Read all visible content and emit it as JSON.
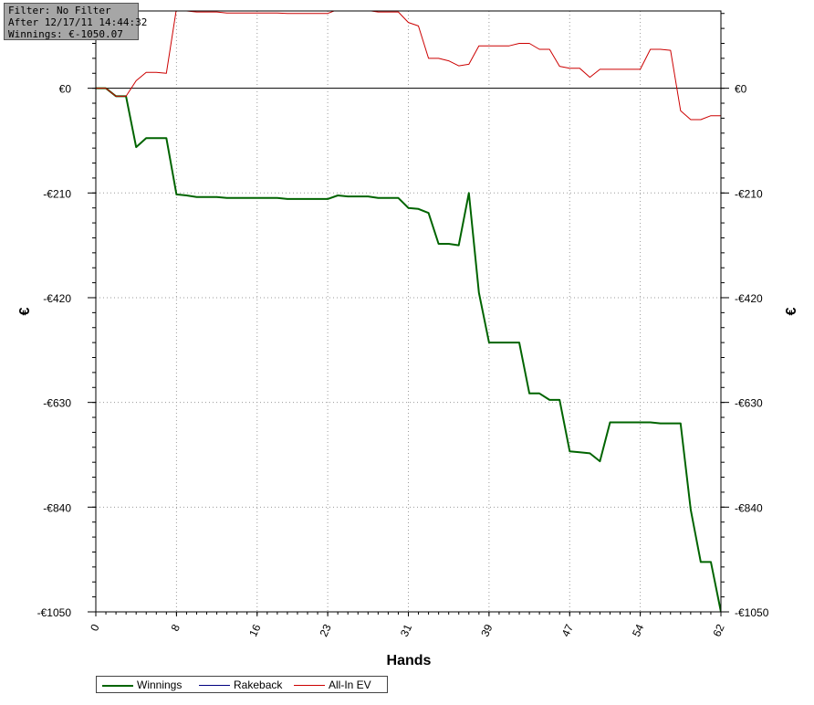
{
  "info_box": {
    "filter": "Filter: No Filter",
    "after": "After 12/17/11 14:44:32",
    "winnings": "Winnings: €-1050.07"
  },
  "legend": [
    {
      "label": "Winnings",
      "color": "#006400"
    },
    {
      "label": "Rakeback",
      "color": "#000080"
    },
    {
      "label": "All-In EV",
      "color": "#cc0000"
    }
  ],
  "chart_data": {
    "type": "line",
    "title": "",
    "xlabel": "Hands",
    "ylabel": "€",
    "ylabel_right": "€",
    "xlim": [
      0,
      62
    ],
    "ylim": [
      -1050,
      155
    ],
    "x_ticks": [
      0,
      8,
      16,
      23,
      31,
      39,
      47,
      54,
      62
    ],
    "x_tick_labels": [
      "0",
      "8",
      "16",
      "23",
      "31",
      "39",
      "47",
      "54",
      "62"
    ],
    "y_ticks": [
      0,
      -210,
      -420,
      -630,
      -840,
      -1050
    ],
    "y_tick_labels": [
      "€0",
      "-€210",
      "-€420",
      "-€630",
      "-€840",
      "-€1050"
    ],
    "grid": true,
    "legend_position": "bottom-left",
    "series": [
      {
        "name": "Winnings",
        "color": "#006400",
        "x": [
          0,
          1,
          2,
          3,
          4,
          5,
          6,
          7,
          8,
          9,
          10,
          11,
          12,
          13,
          14,
          15,
          16,
          17,
          18,
          19,
          20,
          21,
          22,
          23,
          24,
          25,
          26,
          27,
          28,
          29,
          30,
          31,
          32,
          33,
          34,
          35,
          36,
          37,
          38,
          39,
          40,
          41,
          42,
          43,
          44,
          45,
          46,
          47,
          48,
          49,
          50,
          51,
          52,
          53,
          54,
          55,
          56,
          57,
          58,
          59,
          60,
          61,
          62
        ],
        "values": [
          0,
          0,
          -16,
          -16,
          -118,
          -100,
          -100,
          -100,
          -213,
          -215,
          -218,
          -218,
          -218,
          -220,
          -220,
          -220,
          -220,
          -220,
          -220,
          -222,
          -222,
          -222,
          -222,
          -222,
          -215,
          -217,
          -217,
          -217,
          -220,
          -220,
          -220,
          -240,
          -242,
          -250,
          -312,
          -312,
          -315,
          -210,
          -410,
          -510,
          -510,
          -510,
          -510,
          -612,
          -612,
          -625,
          -625,
          -728,
          -730,
          -732,
          -748,
          -670,
          -670,
          -670,
          -670,
          -670,
          -672,
          -672,
          -672,
          -845,
          -950,
          -950,
          -1050
        ]
      },
      {
        "name": "All-In EV",
        "color": "#cc0000",
        "x": [
          0,
          1,
          2,
          3,
          4,
          5,
          6,
          7,
          8,
          9,
          10,
          11,
          12,
          13,
          14,
          15,
          16,
          17,
          18,
          19,
          20,
          21,
          22,
          23,
          24,
          25,
          26,
          27,
          28,
          29,
          30,
          31,
          32,
          33,
          34,
          35,
          36,
          37,
          38,
          39,
          40,
          41,
          42,
          43,
          44,
          45,
          46,
          47,
          48,
          49,
          50,
          51,
          52,
          53,
          54,
          55,
          56,
          57,
          58,
          59,
          60,
          61,
          62
        ],
        "values": [
          0,
          0,
          -16,
          -16,
          15,
          32,
          32,
          30,
          160,
          155,
          153,
          153,
          153,
          151,
          151,
          151,
          151,
          151,
          151,
          150,
          150,
          150,
          150,
          150,
          158,
          156,
          156,
          156,
          153,
          153,
          153,
          132,
          125,
          60,
          60,
          55,
          45,
          48,
          85,
          85,
          85,
          85,
          90,
          90,
          78,
          78,
          44,
          40,
          40,
          22,
          38,
          38,
          38,
          38,
          38,
          78,
          78,
          76,
          -45,
          -63,
          -63,
          -55,
          -55
        ]
      }
    ]
  }
}
